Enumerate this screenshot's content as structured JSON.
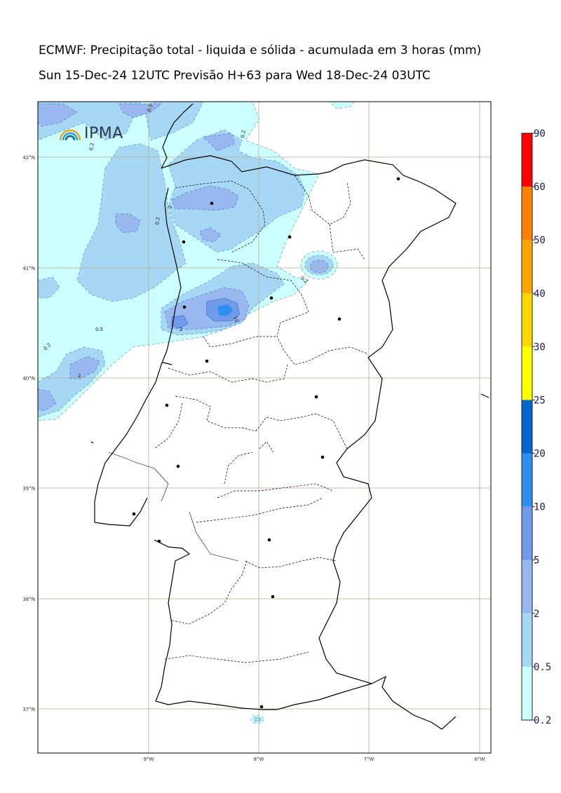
{
  "header": {
    "title": "ECMWF: Precipitação total - liquida e sólida - acumulada em 3 horas (mm)",
    "subtitle": "Sun 15-Dec-24 12UTC Previsão H+63 para Wed 18-Dec-24 03UTC"
  },
  "logo": {
    "text": "IPMA"
  },
  "map": {
    "lon_labels": [
      "9°W",
      "8°W",
      "7°W",
      "6°W"
    ],
    "lat_labels": [
      "42°N",
      "41°N",
      "40°N",
      "39°N",
      "38°N",
      "37°N"
    ],
    "contour_labels": [
      "0.5",
      "0.2",
      "0.2",
      "2",
      "0.2",
      "0.2",
      "2",
      "0.5",
      "0.2",
      "2",
      "10",
      "2",
      "0.5",
      "0.2",
      "2"
    ]
  },
  "colorbar": {
    "levels": [
      "0.2",
      "0.5",
      "2",
      "5",
      "10",
      "20",
      "25",
      "30",
      "40",
      "50",
      "60",
      "90"
    ],
    "colors": [
      "#ccffff",
      "#a6d8f5",
      "#98b8ef",
      "#6f9be8",
      "#2f8ff0",
      "#0066cc",
      "#ffff00",
      "#ffd700",
      "#ffa500",
      "#ff7f00",
      "#ff0000",
      "#ff00aa"
    ]
  }
}
